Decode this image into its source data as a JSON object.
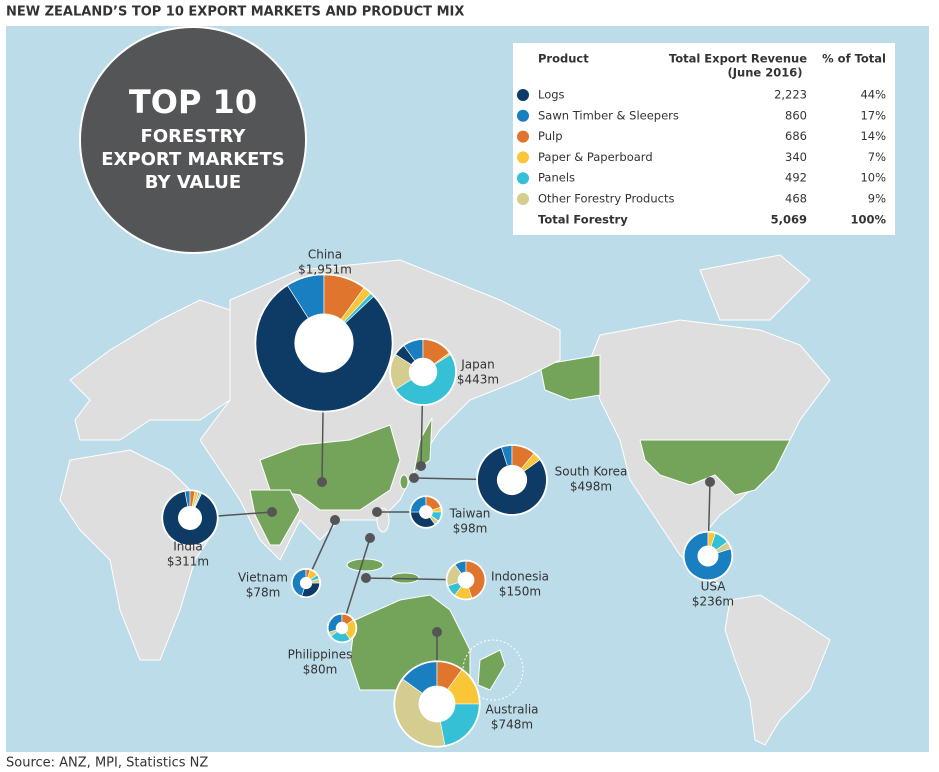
{
  "title": "NEW ZEALAND’S TOP 10 EXPORT MARKETS AND PRODUCT MIX",
  "badge": {
    "line1": "TOP 10",
    "line2": "FORESTRY",
    "line3": "EXPORT MARKETS",
    "line4": "BY VALUE"
  },
  "table": {
    "headers": {
      "product": "Product",
      "revenue": [
        "Total Export Revenue",
        "(June 2016)"
      ],
      "share": "% of Total"
    },
    "rows": [
      {
        "color": "#0d3b66",
        "cells": [
          "Logs",
          "2,223",
          "44%"
        ]
      },
      {
        "color": "#1a7fc1",
        "cells": [
          "Sawn Timber & Sleepers",
          "860",
          "17%"
        ]
      },
      {
        "color": "#e0752d",
        "cells": [
          "Pulp",
          "686",
          "14%"
        ]
      },
      {
        "color": "#f9c638",
        "cells": [
          "Paper & Paperboard",
          "340",
          "7%"
        ]
      },
      {
        "color": "#35c0d6",
        "cells": [
          "Panels",
          "492",
          "10%"
        ]
      },
      {
        "color": "#d4cd8f",
        "cells": [
          "Other Forestry Products",
          "468",
          "9%"
        ]
      }
    ],
    "total": [
      "Total Forestry",
      "5,069",
      "100%"
    ]
  },
  "markets": [
    {
      "name": "China",
      "value": 1951,
      "value_label": "$1,951m",
      "mix": [
        78,
        9,
        10,
        2,
        1,
        0
      ]
    },
    {
      "name": "Japan",
      "value": 443,
      "value_label": "$443m",
      "mix": [
        6,
        10,
        15,
        1,
        50,
        18
      ]
    },
    {
      "name": "South Korea",
      "value": 498,
      "value_label": "$498m",
      "mix": [
        80,
        5,
        11,
        4,
        0,
        0
      ]
    },
    {
      "name": "India",
      "value": 311,
      "value_label": "$311m",
      "mix": [
        90,
        3,
        3,
        2,
        1,
        1
      ]
    },
    {
      "name": "Taiwan",
      "value": 98,
      "value_label": "$98m",
      "mix": [
        35,
        25,
        20,
        5,
        10,
        5
      ]
    },
    {
      "name": "Vietnam",
      "value": 78,
      "value_label": "$78m",
      "mix": [
        30,
        45,
        5,
        10,
        5,
        5
      ]
    },
    {
      "name": "Indonesia",
      "value": 150,
      "value_label": "$150m",
      "mix": [
        0,
        10,
        45,
        15,
        10,
        20
      ]
    },
    {
      "name": "Philippines",
      "value": 80,
      "value_label": "$80m",
      "mix": [
        0,
        30,
        15,
        25,
        25,
        5
      ]
    },
    {
      "name": "Australia",
      "value": 748,
      "value_label": "$748m",
      "mix": [
        0,
        15,
        10,
        15,
        22,
        38
      ]
    },
    {
      "name": "USA",
      "value": 236,
      "value_label": "$236m",
      "mix": [
        0,
        80,
        0,
        5,
        10,
        5
      ]
    }
  ],
  "source": "Source: ANZ, MPI, Statistics NZ"
}
